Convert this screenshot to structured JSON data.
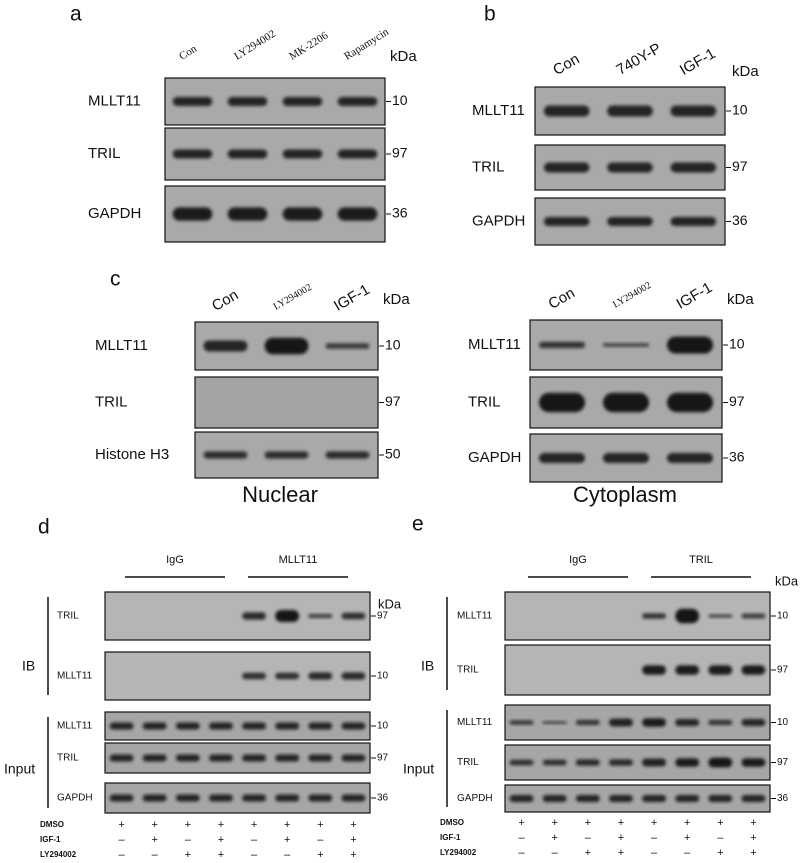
{
  "panels": {
    "a": {
      "label": "a",
      "lanes": [
        "Con",
        "LY294002",
        "MK-2206",
        "Rapamycin"
      ],
      "kda_label": "kDa",
      "blots": [
        {
          "name": "MLLT11",
          "kda": 10
        },
        {
          "name": "TRIL",
          "kda": 97
        },
        {
          "name": "GAPDH",
          "kda": 36
        }
      ]
    },
    "b": {
      "label": "b",
      "lanes": [
        "Con",
        "740Y-P",
        "IGF-1"
      ],
      "kda_label": "kDa",
      "blots": [
        {
          "name": "MLLT11",
          "kda": 10
        },
        {
          "name": "TRIL",
          "kda": 97
        },
        {
          "name": "GAPDH",
          "kda": 36
        }
      ]
    },
    "c": {
      "label": "c",
      "nuclear": {
        "lanes": [
          "Con",
          "LY294002",
          "IGF-1"
        ],
        "kda_label": "kDa",
        "caption": "Nuclear",
        "blots": [
          {
            "name": "MLLT11",
            "kda": 10
          },
          {
            "name": "TRIL",
            "kda": 97
          },
          {
            "name": "Histone H3",
            "kda": 50
          }
        ]
      },
      "cytoplasm": {
        "lanes": [
          "Con",
          "LY294002",
          "IGF-1"
        ],
        "kda_label": "kDa",
        "caption": "Cytoplasm",
        "blots": [
          {
            "name": "MLLT11",
            "kda": 10
          },
          {
            "name": "TRIL",
            "kda": 97
          },
          {
            "name": "GAPDH",
            "kda": 36
          }
        ]
      }
    },
    "d": {
      "label": "d",
      "groups": [
        "IgG",
        "MLLT11"
      ],
      "kda_label": "kDa",
      "ib": {
        "label": "IB",
        "blots": [
          {
            "name": "TRIL",
            "kda": 97
          },
          {
            "name": "MLLT11",
            "kda": 10
          }
        ]
      },
      "input": {
        "label": "Input",
        "blots": [
          {
            "name": "MLLT11",
            "kda": 10
          },
          {
            "name": "TRIL",
            "kda": 97
          },
          {
            "name": "GAPDH",
            "kda": 36
          }
        ]
      },
      "treatments": [
        {
          "name": "DMSO",
          "signs": [
            "+",
            "+",
            "+",
            "+",
            "+",
            "+",
            "+",
            "+"
          ]
        },
        {
          "name": "IGF-1",
          "signs": [
            "–",
            "+",
            "–",
            "+",
            "–",
            "+",
            "–",
            "+"
          ]
        },
        {
          "name": "LY294002",
          "signs": [
            "–",
            "–",
            "+",
            "+",
            "–",
            "–",
            "+",
            "+"
          ]
        }
      ]
    },
    "e": {
      "label": "e",
      "groups": [
        "IgG",
        "TRIL"
      ],
      "kda_label": "kDa",
      "ib": {
        "label": "IB",
        "blots": [
          {
            "name": "MLLT11",
            "kda": 10
          },
          {
            "name": "TRIL",
            "kda": 97
          }
        ]
      },
      "input": {
        "label": "Input",
        "blots": [
          {
            "name": "MLLT11",
            "kda": 10
          },
          {
            "name": "TRIL",
            "kda": 97
          },
          {
            "name": "GAPDH",
            "kda": 36
          }
        ]
      },
      "treatments": [
        {
          "name": "DMSO",
          "signs": [
            "+",
            "+",
            "+",
            "+",
            "+",
            "+",
            "+",
            "+"
          ]
        },
        {
          "name": "IGF-1",
          "signs": [
            "–",
            "+",
            "–",
            "+",
            "–",
            "+",
            "–",
            "+"
          ]
        },
        {
          "name": "LY294002",
          "signs": [
            "–",
            "–",
            "+",
            "+",
            "–",
            "–",
            "+",
            "+"
          ]
        }
      ]
    }
  }
}
